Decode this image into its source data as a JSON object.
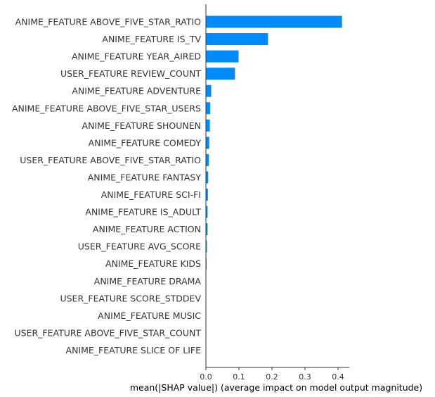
{
  "chart_data": {
    "type": "bar",
    "orientation": "horizontal",
    "title": "",
    "xlabel": "mean(|SHAP value|) (average impact on model output magnitude)",
    "ylabel": "",
    "xlim": [
      0,
      0.43
    ],
    "xticks": [
      0.0,
      0.1,
      0.2,
      0.3,
      0.4
    ],
    "xtick_labels": [
      "0.0",
      "0.1",
      "0.2",
      "0.3",
      "0.4"
    ],
    "grid": false,
    "bar_color": "#008bfb",
    "categories": [
      "ANIME_FEATURE ABOVE_FIVE_STAR_RATIO",
      "ANIME_FEATURE IS_TV",
      "ANIME_FEATURE YEAR_AIRED",
      "USER_FEATURE REVIEW_COUNT",
      "ANIME_FEATURE ADVENTURE",
      "ANIME_FEATURE ABOVE_FIVE_STAR_USERS",
      "ANIME_FEATURE SHOUNEN",
      "ANIME_FEATURE COMEDY",
      "USER_FEATURE ABOVE_FIVE_STAR_RATIO",
      "ANIME_FEATURE FANTASY",
      "ANIME_FEATURE SCI-FI",
      "ANIME_FEATURE IS_ADULT",
      "ANIME_FEATURE ACTION",
      "USER_FEATURE AVG_SCORE",
      "ANIME_FEATURE KIDS",
      "ANIME_FEATURE DRAMA",
      "USER_FEATURE SCORE_STDDEV",
      "ANIME_FEATURE MUSIC",
      "USER_FEATURE ABOVE_FIVE_STAR_COUNT",
      "ANIME_FEATURE SLICE OF LIFE"
    ],
    "values": [
      0.412,
      0.188,
      0.099,
      0.088,
      0.016,
      0.013,
      0.012,
      0.01,
      0.009,
      0.007,
      0.006,
      0.005,
      0.005,
      0.003,
      0.002,
      0.0005,
      0.0004,
      0.0003,
      0.0002,
      0.0001
    ]
  }
}
